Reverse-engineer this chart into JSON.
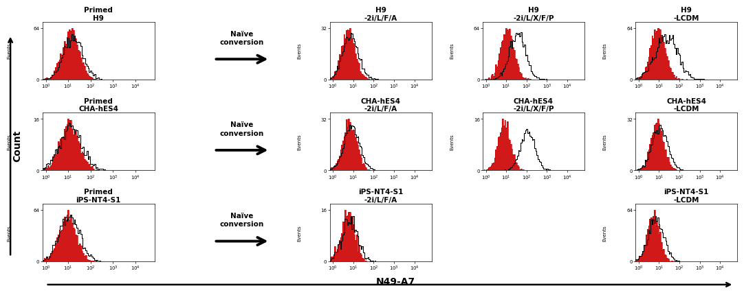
{
  "figure_width": 10.81,
  "figure_height": 4.11,
  "background_color": "#ffffff",
  "title_fontsize": 7.5,
  "tick_fontsize": 5,
  "count_label": "Count",
  "xaxis_label": "N49-A7",
  "panels": [
    {
      "row": 0,
      "col": 0,
      "title": "Primed\nH9",
      "ymax_label": "64",
      "red_mu": 1.1,
      "red_sigma": 0.38,
      "red_n": 3000,
      "black_mu": 1.2,
      "black_sigma": 0.42,
      "black_n": 3000,
      "black_scale": 0.88
    },
    {
      "row": 0,
      "col": 2,
      "title": "H9\n-2i/L/F/A",
      "ymax_label": "32",
      "red_mu": 0.75,
      "red_sigma": 0.32,
      "red_n": 3000,
      "black_mu": 0.85,
      "black_sigma": 0.38,
      "black_n": 3000,
      "black_scale": 0.9
    },
    {
      "row": 0,
      "col": 3,
      "title": "H9\n-2i/L/X/F/P",
      "ymax_label": "64",
      "red_mu": 1.05,
      "red_sigma": 0.32,
      "red_n": 3000,
      "black_mu": 1.55,
      "black_sigma": 0.38,
      "black_n": 3000,
      "black_scale": 0.92
    },
    {
      "row": 0,
      "col": 4,
      "title": "H9\n-LCDM",
      "ymax_label": "64",
      "red_mu": 0.95,
      "red_sigma": 0.35,
      "red_n": 3000,
      "black_mu": 1.35,
      "black_sigma": 0.55,
      "black_n": 3000,
      "black_scale": 0.88
    },
    {
      "row": 1,
      "col": 0,
      "title": "Primed\nCHA-hES4",
      "ymax_label": "16",
      "red_mu": 1.05,
      "red_sigma": 0.42,
      "red_n": 3000,
      "black_mu": 1.1,
      "black_sigma": 0.5,
      "black_n": 3000,
      "black_scale": 0.92
    },
    {
      "row": 1,
      "col": 2,
      "title": "CHA-hES4\n-2i/L/F/A",
      "ymax_label": "32",
      "red_mu": 0.82,
      "red_sigma": 0.33,
      "red_n": 3000,
      "black_mu": 0.92,
      "black_sigma": 0.38,
      "black_n": 3000,
      "black_scale": 0.88
    },
    {
      "row": 1,
      "col": 3,
      "title": "CHA-hES4\n-2i/L/X/F/P",
      "ymax_label": "16",
      "red_mu": 0.9,
      "red_sigma": 0.3,
      "red_n": 3000,
      "black_mu": 2.05,
      "black_sigma": 0.35,
      "black_n": 3000,
      "black_scale": 0.8
    },
    {
      "row": 1,
      "col": 4,
      "title": "CHA-hES4\n-LCDM",
      "ymax_label": "32",
      "red_mu": 0.9,
      "red_sigma": 0.32,
      "red_n": 3000,
      "black_mu": 1.05,
      "black_sigma": 0.38,
      "black_n": 3000,
      "black_scale": 0.88
    },
    {
      "row": 2,
      "col": 0,
      "title": "Primed\niPS-NT4-S1",
      "ymax_label": "64",
      "red_mu": 0.95,
      "red_sigma": 0.38,
      "red_n": 3000,
      "black_mu": 1.05,
      "black_sigma": 0.45,
      "black_n": 3000,
      "black_scale": 0.9
    },
    {
      "row": 2,
      "col": 2,
      "title": "iPS-NT4-S1\n-2i/L/F/A",
      "ymax_label": "16",
      "red_mu": 0.72,
      "red_sigma": 0.32,
      "red_n": 800,
      "black_mu": 0.82,
      "black_sigma": 0.38,
      "black_n": 800,
      "black_scale": 0.88
    },
    {
      "row": 2,
      "col": 4,
      "title": "iPS-NT4-S1\n-LCDM",
      "ymax_label": "64",
      "red_mu": 0.72,
      "red_sigma": 0.3,
      "red_n": 3000,
      "black_mu": 0.85,
      "black_sigma": 0.38,
      "black_n": 3000,
      "black_scale": 0.88
    }
  ],
  "arrows": [
    {
      "row": 0,
      "text": "Naïve\nconversion"
    },
    {
      "row": 1,
      "text": "Naïve\nconversion"
    },
    {
      "row": 2,
      "text": "Naïve\nconversion"
    }
  ],
  "red_color": "#cc0000",
  "xlim_low": 0.7,
  "xlim_high": 70000
}
